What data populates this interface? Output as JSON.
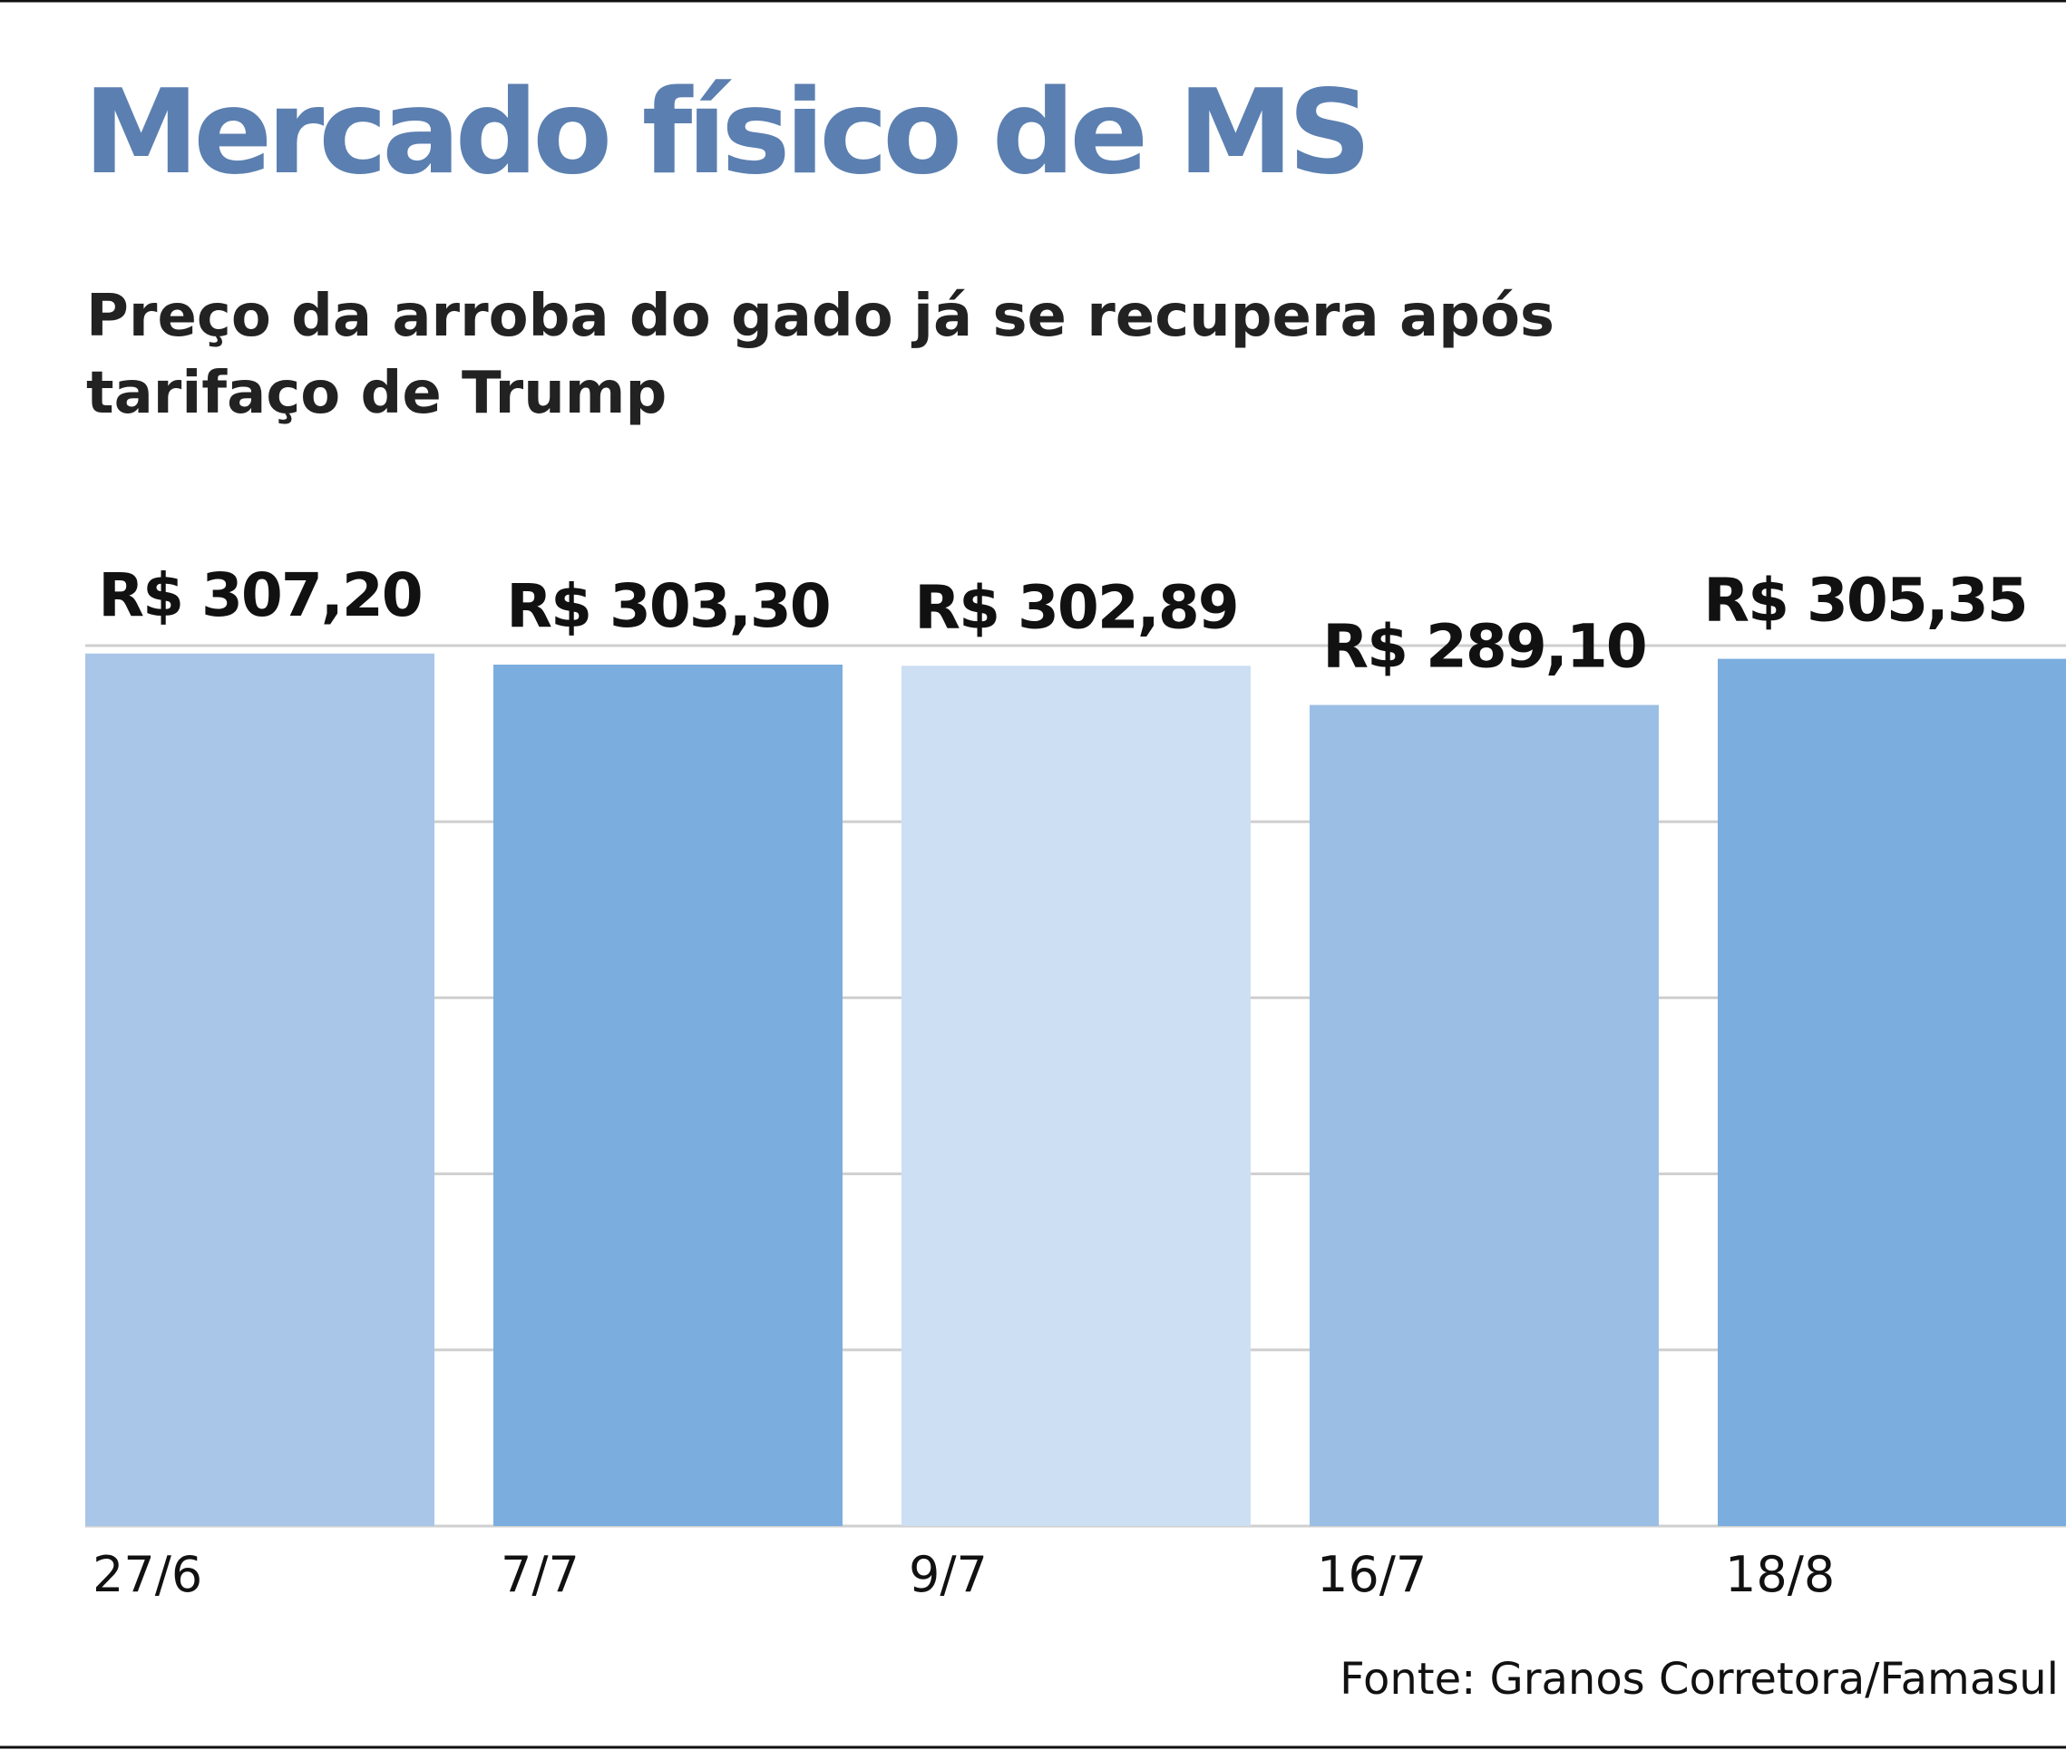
{
  "chart_data": {
    "type": "bar",
    "title": "Mercado físico de MS",
    "subtitle": [
      "Preço da arroba do gado já se recupera após",
      "tarifaço de Trump"
    ],
    "categories": [
      "27/6",
      "7/7",
      "9/7",
      "16/7",
      "18/8"
    ],
    "values": [
      307.2,
      303.3,
      302.89,
      289.1,
      305.35
    ],
    "value_labels": [
      "R$ 307,20",
      "R$ 303,30",
      "R$ 302,89",
      "R$ 289,10",
      "R$ 305,35"
    ],
    "colors": [
      "#a9c6e8",
      "#7baede",
      "#cddff3",
      "#9bbee5",
      "#7baede"
    ],
    "ylim": [
      0,
      310
    ],
    "source": "Fonte: Granos Corretora/Famasul"
  }
}
